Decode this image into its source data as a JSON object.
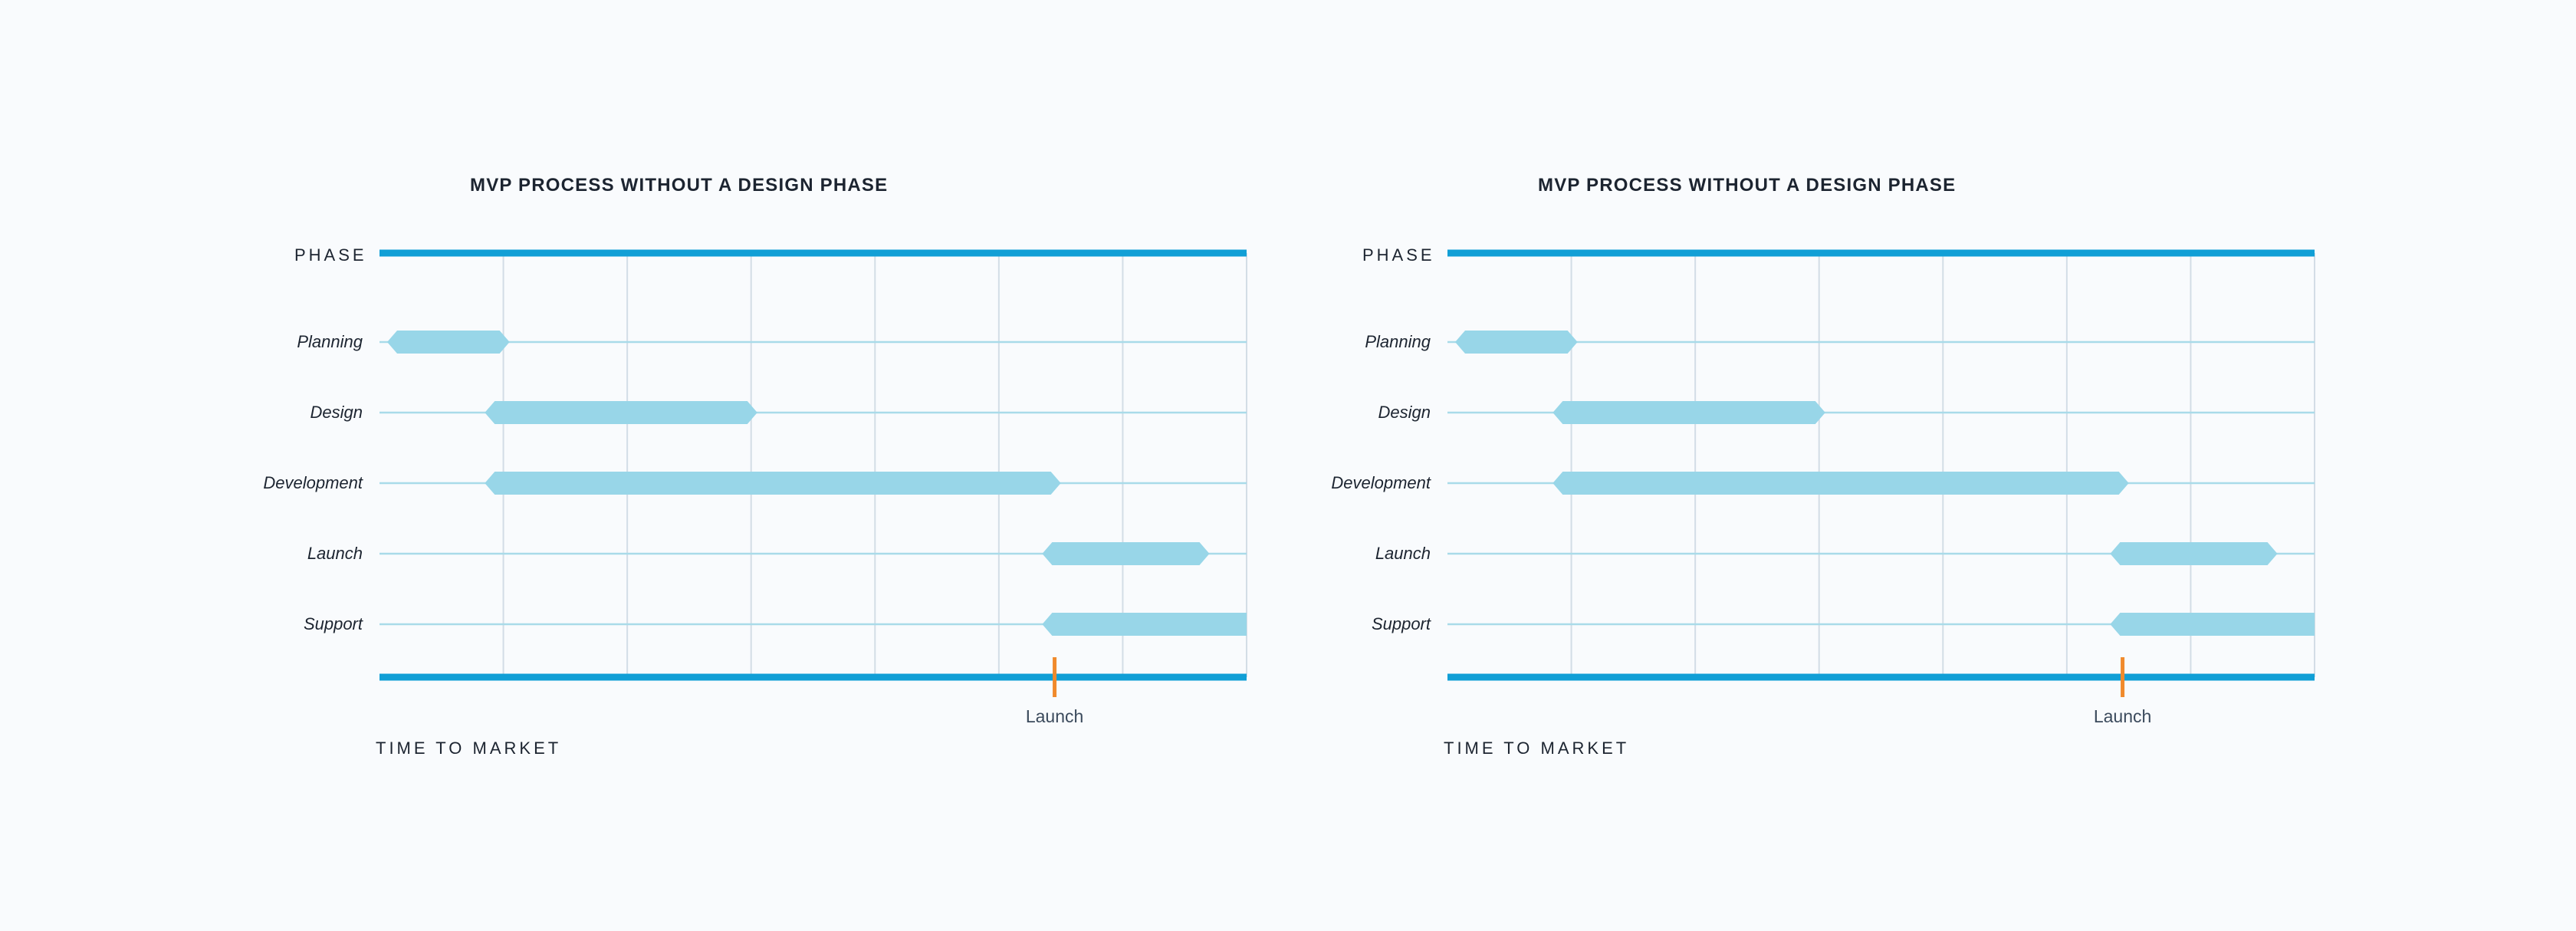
{
  "colors": {
    "frame": "#119fd6",
    "bar": "#98d6e8",
    "grid_vertical": "#d3dde6",
    "grid_row": "#a9dbe9",
    "launch_marker": "#f08a2c"
  },
  "charts": [
    {
      "title": "MVP PROCESS WITHOUT A DESIGN PHASE",
      "y_axis_label": "PHASE",
      "x_axis_label": "TIME TO MARKET",
      "launch_label": "Launch",
      "launch_at": 5.45,
      "time_range": [
        0,
        7
      ],
      "phases": [
        {
          "name": "Planning",
          "start": 0,
          "end": 1.05
        },
        {
          "name": "Design",
          "start": 0.85,
          "end": 3.05
        },
        {
          "name": "Development",
          "start": 0.85,
          "end": 5.5
        },
        {
          "name": "Launch",
          "start": 5.35,
          "end": 6.7
        },
        {
          "name": "Support",
          "start": 5.35,
          "end": 7
        }
      ]
    },
    {
      "title": "MVP PROCESS WITHOUT A DESIGN PHASE",
      "y_axis_label": "PHASE",
      "x_axis_label": "TIME TO MARKET",
      "launch_label": "Launch",
      "launch_at": 5.45,
      "time_range": [
        0,
        7
      ],
      "phases": [
        {
          "name": "Planning",
          "start": 0,
          "end": 1.05
        },
        {
          "name": "Design",
          "start": 0.85,
          "end": 3.05
        },
        {
          "name": "Development",
          "start": 0.85,
          "end": 5.5
        },
        {
          "name": "Launch",
          "start": 5.35,
          "end": 6.7
        },
        {
          "name": "Support",
          "start": 5.35,
          "end": 7
        }
      ]
    }
  ]
}
